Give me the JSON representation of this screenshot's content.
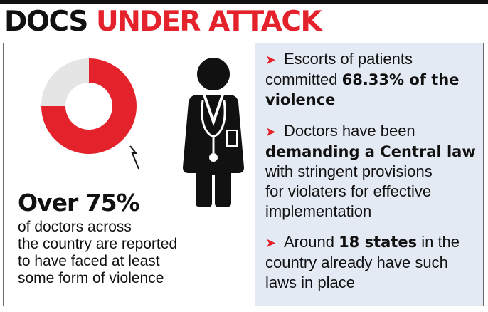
{
  "title": {
    "part1": "DOCS",
    "part2": "UNDER ATTACK"
  },
  "chart_data": {
    "type": "pie",
    "slices": [
      {
        "value": 75,
        "color": "#e3222b"
      },
      {
        "value": 25,
        "color": "#e5e5e5"
      }
    ]
  },
  "stat": {
    "value": "Over 75%",
    "lines": [
      "of doctors across",
      "the country are reported",
      "to have faced at least",
      "some form of violence"
    ]
  },
  "bullets": [
    {
      "lines": [
        [
          "Escorts of patients",
          ""
        ],
        [
          "committed ",
          "68.33% of the"
        ],
        [
          "",
          "violence"
        ]
      ]
    },
    {
      "lines": [
        [
          "Doctors have been",
          ""
        ],
        [
          "",
          "demanding a Central law"
        ],
        [
          "with stringent provisions",
          ""
        ],
        [
          "for violaters for effective",
          ""
        ],
        [
          "implementation",
          ""
        ]
      ]
    },
    {
      "lines": [
        [
          "Around ",
          "18 states",
          " in the"
        ],
        [
          "country already have such",
          ""
        ],
        [
          "laws in place",
          ""
        ]
      ]
    }
  ],
  "arrow_glyph": "➤",
  "colors": {
    "accent": "#e3222b",
    "panel": "#e4eaf4"
  },
  "icons": [
    "doctor-icon",
    "arrow-bullet-icon"
  ]
}
